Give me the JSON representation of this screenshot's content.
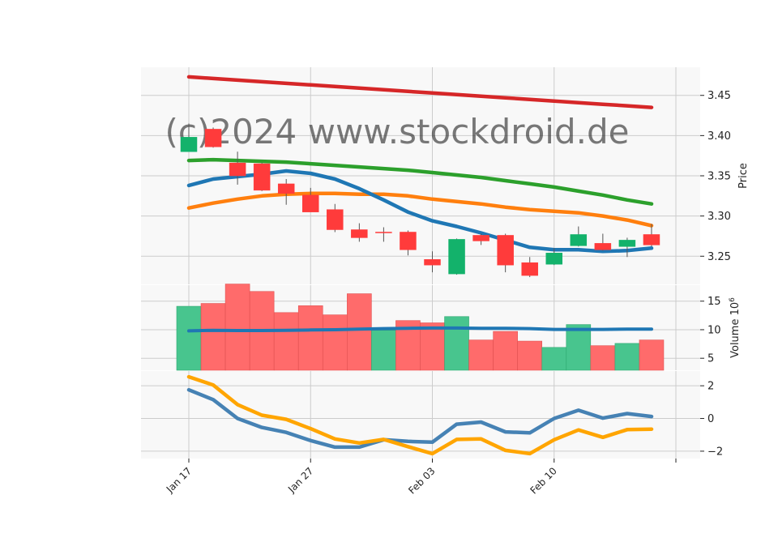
{
  "watermark": "(c)2024 www.stockdroid.de",
  "colors": {
    "up": "#13b26b",
    "down": "#ff3b3b",
    "up_volume": "#48c58e",
    "down_volume": "#ff6b6b",
    "ma_red": "#d62728",
    "ma_green": "#2ca02c",
    "ma_orange": "#ff7f0e",
    "ma_blue": "#1f77b4",
    "vol_ma": "#1f77b4",
    "macd": "#4682b4",
    "signal": "#ffa500",
    "panel_bg": "#f8f8f8",
    "grid": "#cccccc"
  },
  "chart_data": [
    {
      "type": "candlestick",
      "ylabel": "Price",
      "ylim": [
        3.215,
        3.485
      ],
      "yticks": [
        3.25,
        3.3,
        3.35,
        3.4,
        3.45
      ],
      "xticks": [
        {
          "index": 0,
          "label": "Jan 17"
        },
        {
          "index": 5,
          "label": "Jan 27"
        },
        {
          "index": 10,
          "label": "Feb 03"
        },
        {
          "index": 15,
          "label": "Feb 10"
        },
        {
          "index": 20,
          "label": ""
        }
      ],
      "grid": true,
      "candles": [
        {
          "open": 3.38,
          "high": 3.415,
          "low": 3.38,
          "close": 3.398
        },
        {
          "open": 3.408,
          "high": 3.41,
          "low": 3.385,
          "close": 3.386
        },
        {
          "open": 3.366,
          "high": 3.38,
          "low": 3.339,
          "close": 3.35
        },
        {
          "open": 3.365,
          "high": 3.366,
          "low": 3.331,
          "close": 3.332
        },
        {
          "open": 3.34,
          "high": 3.346,
          "low": 3.314,
          "close": 3.328
        },
        {
          "open": 3.326,
          "high": 3.335,
          "low": 3.305,
          "close": 3.305
        },
        {
          "open": 3.308,
          "high": 3.315,
          "low": 3.28,
          "close": 3.283
        },
        {
          "open": 3.283,
          "high": 3.291,
          "low": 3.268,
          "close": 3.273
        },
        {
          "open": 3.28,
          "high": 3.286,
          "low": 3.268,
          "close": 3.279
        },
        {
          "open": 3.28,
          "high": 3.282,
          "low": 3.251,
          "close": 3.258
        },
        {
          "open": 3.246,
          "high": 3.256,
          "low": 3.23,
          "close": 3.239
        },
        {
          "open": 3.228,
          "high": 3.272,
          "low": 3.227,
          "close": 3.271
        },
        {
          "open": 3.276,
          "high": 3.278,
          "low": 3.264,
          "close": 3.269
        },
        {
          "open": 3.276,
          "high": 3.278,
          "low": 3.23,
          "close": 3.239
        },
        {
          "open": 3.242,
          "high": 3.249,
          "low": 3.224,
          "close": 3.226
        },
        {
          "open": 3.24,
          "high": 3.26,
          "low": 3.239,
          "close": 3.254
        },
        {
          "open": 3.263,
          "high": 3.287,
          "low": 3.262,
          "close": 3.277
        },
        {
          "open": 3.266,
          "high": 3.278,
          "low": 3.257,
          "close": 3.258
        },
        {
          "open": 3.262,
          "high": 3.273,
          "low": 3.249,
          "close": 3.27
        },
        {
          "open": 3.277,
          "high": 3.29,
          "low": 3.262,
          "close": 3.264
        }
      ],
      "series": [
        {
          "color_key": "ma_red",
          "values": [
            3.473,
            3.471,
            3.469,
            3.467,
            3.465,
            3.463,
            3.461,
            3.459,
            3.457,
            3.455,
            3.453,
            3.451,
            3.449,
            3.447,
            3.445,
            3.443,
            3.441,
            3.439,
            3.437,
            3.435
          ]
        },
        {
          "color_key": "ma_green",
          "values": [
            3.369,
            3.37,
            3.369,
            3.368,
            3.367,
            3.365,
            3.363,
            3.361,
            3.359,
            3.357,
            3.354,
            3.351,
            3.348,
            3.344,
            3.34,
            3.336,
            3.331,
            3.326,
            3.32,
            3.315
          ]
        },
        {
          "color_key": "ma_orange",
          "values": [
            3.31,
            3.316,
            3.321,
            3.325,
            3.327,
            3.328,
            3.328,
            3.327,
            3.327,
            3.325,
            3.321,
            3.318,
            3.315,
            3.311,
            3.308,
            3.306,
            3.304,
            3.3,
            3.295,
            3.288
          ]
        },
        {
          "color_key": "ma_blue",
          "values": [
            3.338,
            3.346,
            3.349,
            3.352,
            3.356,
            3.353,
            3.346,
            3.334,
            3.32,
            3.305,
            3.294,
            3.287,
            3.279,
            3.27,
            3.261,
            3.258,
            3.258,
            3.256,
            3.257,
            3.26
          ]
        }
      ]
    },
    {
      "type": "bar",
      "ylabel": "Volume  10",
      "ylabel_exp": "6",
      "ylim": [
        2.9,
        17.8
      ],
      "yticks": [
        5,
        10,
        15
      ],
      "values": [
        14.1,
        14.6,
        18.0,
        16.7,
        13.0,
        14.2,
        12.6,
        16.3,
        9.9,
        11.6,
        11.2,
        12.3,
        8.2,
        9.7,
        8.0,
        6.9,
        10.9,
        7.2,
        7.6,
        8.2
      ],
      "directions": [
        "up",
        "down",
        "down",
        "down",
        "down",
        "down",
        "down",
        "down",
        "up",
        "down",
        "down",
        "up",
        "down",
        "down",
        "down",
        "up",
        "up",
        "down",
        "up",
        "down"
      ],
      "series": [
        {
          "color_key": "vol_ma",
          "values": [
            9.8,
            9.9,
            9.85,
            9.85,
            9.9,
            9.95,
            10.0,
            10.1,
            10.2,
            10.25,
            10.3,
            10.3,
            10.25,
            10.25,
            10.2,
            10.05,
            10.05,
            10.05,
            10.1,
            10.1
          ]
        }
      ]
    },
    {
      "type": "line",
      "ylim": [
        -2.45,
        2.9
      ],
      "yticks": [
        -2,
        0,
        2
      ],
      "series": [
        {
          "color_key": "macd",
          "values": [
            1.75,
            1.15,
            0.0,
            -0.55,
            -0.85,
            -1.35,
            -1.75,
            -1.75,
            -1.3,
            -1.4,
            -1.45,
            -0.35,
            -0.22,
            -0.82,
            -0.88,
            0.0,
            0.5,
            0.02,
            0.3,
            0.12
          ]
        },
        {
          "color_key": "signal",
          "values": [
            2.55,
            2.05,
            0.85,
            0.2,
            -0.05,
            -0.62,
            -1.25,
            -1.5,
            -1.28,
            -1.72,
            -2.15,
            -1.28,
            -1.25,
            -1.95,
            -2.15,
            -1.3,
            -0.7,
            -1.15,
            -0.68,
            -0.65
          ]
        }
      ]
    }
  ]
}
